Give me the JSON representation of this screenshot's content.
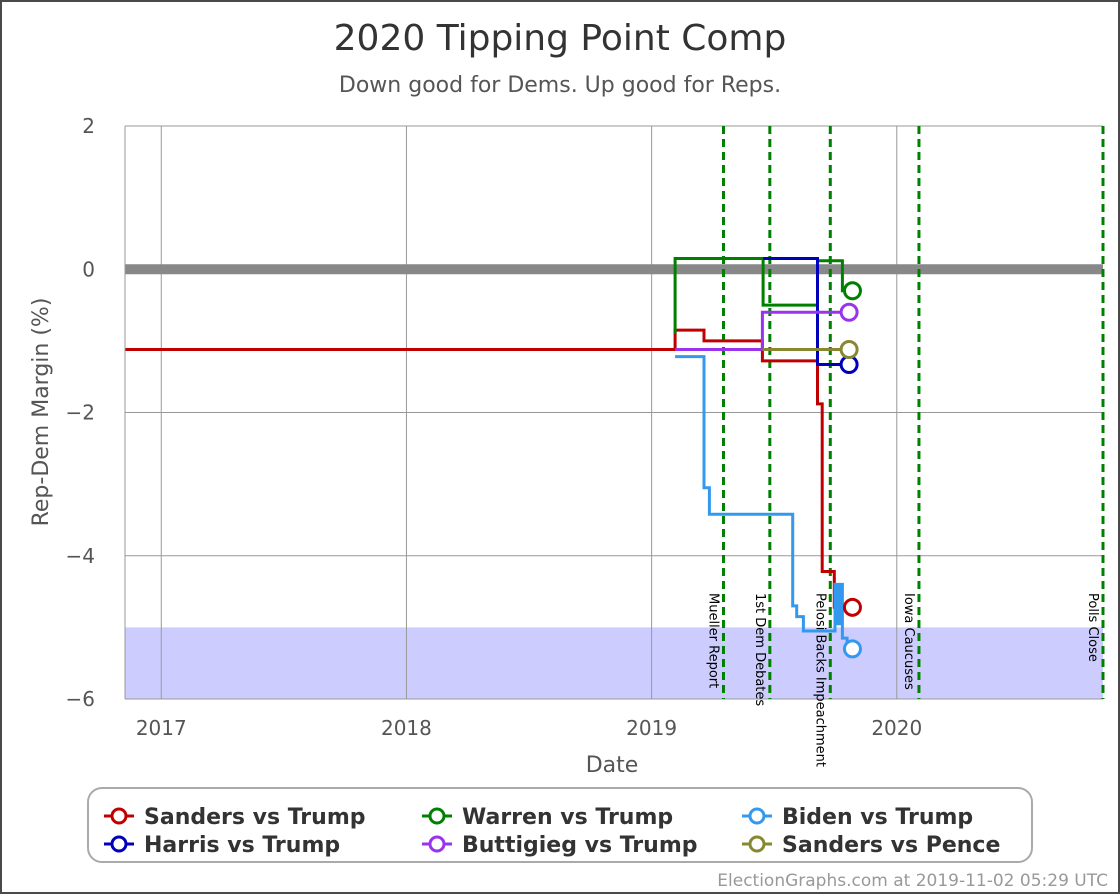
{
  "chart_data": {
    "type": "line",
    "title": "2020 Tipping Point Comp",
    "subtitle": "Down good for Dems. Up good for Reps.",
    "xlabel": "Date",
    "ylabel": "Rep-Dem Margin (%)",
    "xlim": [
      "2016-11-08",
      "2020-11-03"
    ],
    "ylim": [
      -6,
      2
    ],
    "grid": true,
    "legend_position": "bottom",
    "x_ticks": [
      {
        "date": "2017-01-01",
        "label": "2017"
      },
      {
        "date": "2018-01-01",
        "label": "2018"
      },
      {
        "date": "2019-01-01",
        "label": "2019"
      },
      {
        "date": "2020-01-01",
        "label": "2020"
      }
    ],
    "y_ticks": [
      {
        "value": 2,
        "label": "2"
      },
      {
        "value": 0,
        "label": "0"
      },
      {
        "value": -2,
        "label": "−2"
      },
      {
        "value": -4,
        "label": "−4"
      },
      {
        "value": -6,
        "label": "−6"
      }
    ],
    "tie_band": {
      "low": -0.07,
      "high": 0.07,
      "color": "#888888"
    },
    "shaded_region": {
      "low": -6,
      "high": -5,
      "color": "#ccccff"
    },
    "events": [
      {
        "date": "2019-04-18",
        "label": "Mueller Report"
      },
      {
        "date": "2019-06-26",
        "label": "1st Dem Debates"
      },
      {
        "date": "2019-09-24",
        "label": "Pelosi Backs Impeachment"
      },
      {
        "date": "2020-02-03",
        "label": "Iowa Caucuses"
      },
      {
        "date": "2020-11-03",
        "label": "Polls Close"
      }
    ],
    "series": [
      {
        "name": "Sanders vs Trump",
        "color": "#c00000",
        "points": [
          {
            "date": "2016-11-08",
            "y": -1.12
          },
          {
            "date": "2019-02-05",
            "y": -1.12
          },
          {
            "date": "2019-02-05",
            "y": -0.85
          },
          {
            "date": "2019-03-20",
            "y": -0.85
          },
          {
            "date": "2019-03-20",
            "y": -1.0
          },
          {
            "date": "2019-06-15",
            "y": -1.0
          },
          {
            "date": "2019-06-15",
            "y": -1.28
          },
          {
            "date": "2019-09-05",
            "y": -1.28
          },
          {
            "date": "2019-09-05",
            "y": -1.88
          },
          {
            "date": "2019-09-12",
            "y": -1.88
          },
          {
            "date": "2019-09-12",
            "y": -4.22
          },
          {
            "date": "2019-09-30",
            "y": -4.22
          },
          {
            "date": "2019-09-30",
            "y": -4.72
          },
          {
            "date": "2019-10-27",
            "y": -4.72
          }
        ]
      },
      {
        "name": "Warren vs Trump",
        "color": "#008000",
        "points": [
          {
            "date": "2019-02-05",
            "y": -0.9
          },
          {
            "date": "2019-02-05",
            "y": 0.15
          },
          {
            "date": "2019-06-16",
            "y": 0.15
          },
          {
            "date": "2019-06-16",
            "y": -0.5
          },
          {
            "date": "2019-09-05",
            "y": -0.5
          },
          {
            "date": "2019-09-05",
            "y": 0.12
          },
          {
            "date": "2019-10-12",
            "y": 0.12
          },
          {
            "date": "2019-10-12",
            "y": -0.3
          },
          {
            "date": "2019-10-27",
            "y": -0.3
          }
        ]
      },
      {
        "name": "Biden vs Trump",
        "color": "#3399ee",
        "points": [
          {
            "date": "2019-02-05",
            "y": -1.22
          },
          {
            "date": "2019-03-20",
            "y": -1.22
          },
          {
            "date": "2019-03-20",
            "y": -3.05
          },
          {
            "date": "2019-03-28",
            "y": -3.05
          },
          {
            "date": "2019-03-28",
            "y": -3.42
          },
          {
            "date": "2019-07-30",
            "y": -3.42
          },
          {
            "date": "2019-07-30",
            "y": -4.7
          },
          {
            "date": "2019-08-05",
            "y": -4.7
          },
          {
            "date": "2019-08-05",
            "y": -4.85
          },
          {
            "date": "2019-08-15",
            "y": -4.85
          },
          {
            "date": "2019-08-15",
            "y": -5.05
          },
          {
            "date": "2019-10-01",
            "y": -5.05
          },
          {
            "date": "2019-10-01",
            "y": -4.4
          },
          {
            "date": "2019-10-05",
            "y": -4.4
          },
          {
            "date": "2019-10-05",
            "y": -4.95
          },
          {
            "date": "2019-10-08",
            "y": -4.95
          },
          {
            "date": "2019-10-08",
            "y": -4.4
          },
          {
            "date": "2019-10-12",
            "y": -4.4
          },
          {
            "date": "2019-10-12",
            "y": -5.15
          },
          {
            "date": "2019-10-19",
            "y": -5.15
          },
          {
            "date": "2019-10-19",
            "y": -5.3
          },
          {
            "date": "2019-10-27",
            "y": -5.3
          }
        ]
      },
      {
        "name": "Harris vs Trump",
        "color": "#0000bb",
        "points": [
          {
            "date": "2019-06-16",
            "y": 0.15
          },
          {
            "date": "2019-09-05",
            "y": 0.15
          },
          {
            "date": "2019-09-05",
            "y": -1.33
          },
          {
            "date": "2019-10-22",
            "y": -1.33
          }
        ]
      },
      {
        "name": "Buttigieg vs Trump",
        "color": "#9933ee",
        "points": [
          {
            "date": "2019-02-05",
            "y": -1.12
          },
          {
            "date": "2019-06-15",
            "y": -1.12
          },
          {
            "date": "2019-06-15",
            "y": -0.6
          },
          {
            "date": "2019-10-22",
            "y": -0.6
          }
        ]
      },
      {
        "name": "Sanders vs Pence",
        "color": "#888833",
        "points": [
          {
            "date": "2019-06-15",
            "y": -1.12
          },
          {
            "date": "2019-10-22",
            "y": -1.12
          }
        ]
      }
    ]
  },
  "footer": {
    "credit": "ElectionGraphs.com at 2019-11-02 05:29 UTC"
  }
}
